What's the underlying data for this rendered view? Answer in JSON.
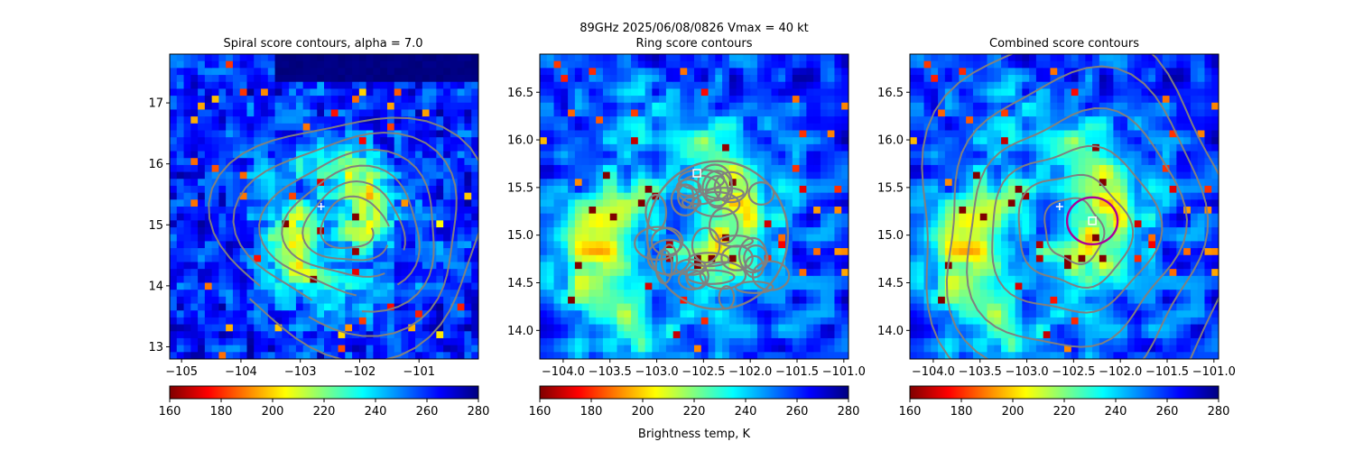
{
  "figure": {
    "suptitle": "89GHz  2025/06/08/0826    Vmax = 40 kt",
    "colorbar_label": "Brightness temp, K",
    "colormap_stops": [
      "#800000",
      "#ff0000",
      "#ff8000",
      "#ffff00",
      "#80ff80",
      "#00ffff",
      "#0080ff",
      "#0000ff",
      "#000080"
    ]
  },
  "chart_data": [
    {
      "type": "heatmap",
      "title": "Spiral score contours, alpha =  7.0",
      "xlim": [
        -105.2,
        -100.0
      ],
      "ylim": [
        12.8,
        17.8
      ],
      "x_ticks": [
        -105,
        -104,
        -103,
        -102,
        -101
      ],
      "y_ticks": [
        13,
        14,
        15,
        16,
        17
      ],
      "x_tick_labels": [
        "−105",
        "−104",
        "−103",
        "−102",
        "−101"
      ],
      "y_tick_labels": [
        "13",
        "14",
        "15",
        "16",
        "17"
      ],
      "colorbar": {
        "min": 160,
        "max": 280,
        "ticks": [
          160,
          180,
          200,
          220,
          240,
          260,
          280
        ],
        "tick_labels": [
          "160",
          "180",
          "200",
          "220",
          "240",
          "260",
          "280"
        ]
      },
      "markers": [
        {
          "type": "plus",
          "x": -102.65,
          "y": 15.3,
          "color": "#ffffff"
        }
      ],
      "contour_color": "#808080"
    },
    {
      "type": "heatmap",
      "title": "Ring score contours",
      "xlim": [
        -104.25,
        -100.95
      ],
      "ylim": [
        13.7,
        16.9
      ],
      "x_ticks": [
        -104.0,
        -103.5,
        -103.0,
        -102.5,
        -102.0,
        -101.5,
        -101.0
      ],
      "y_ticks": [
        14.0,
        14.5,
        15.0,
        15.5,
        16.0,
        16.5
      ],
      "x_tick_labels": [
        "−104.0",
        "−103.5",
        "−103.0",
        "−102.5",
        "−102.0",
        "−101.5",
        "−101.0"
      ],
      "y_tick_labels": [
        "14.0",
        "14.5",
        "15.0",
        "15.5",
        "16.0",
        "16.5"
      ],
      "colorbar": {
        "min": 160,
        "max": 280,
        "ticks": [
          160,
          180,
          200,
          220,
          240,
          260,
          280
        ],
        "tick_labels": [
          "160",
          "180",
          "200",
          "220",
          "240",
          "260",
          "280"
        ]
      },
      "markers": [
        {
          "type": "square",
          "x": -102.57,
          "y": 15.65,
          "color": "#ffffff"
        }
      ],
      "contour_color": "#808080"
    },
    {
      "type": "heatmap",
      "title": "Combined score contours",
      "xlim": [
        -104.25,
        -100.95
      ],
      "ylim": [
        13.7,
        16.9
      ],
      "x_ticks": [
        -104.0,
        -103.5,
        -103.0,
        -102.5,
        -102.0,
        -101.5,
        -101.0
      ],
      "y_ticks": [
        14.0,
        14.5,
        15.0,
        15.5,
        16.0,
        16.5
      ],
      "x_tick_labels": [
        "−104.0",
        "−103.5",
        "−103.0",
        "−102.5",
        "−102.0",
        "−101.5",
        "−101.0"
      ],
      "y_tick_labels": [
        "14.0",
        "14.5",
        "15.0",
        "15.5",
        "16.0",
        "16.5"
      ],
      "colorbar": {
        "min": 160,
        "max": 280,
        "ticks": [
          160,
          180,
          200,
          220,
          240,
          260,
          280
        ],
        "tick_labels": [
          "160",
          "180",
          "200",
          "220",
          "240",
          "260",
          "280"
        ]
      },
      "markers": [
        {
          "type": "plus",
          "x": -102.65,
          "y": 15.3,
          "color": "#ffffff"
        },
        {
          "type": "square",
          "x": -102.3,
          "y": 15.15,
          "color": "#ffffff"
        }
      ],
      "contour_color": "#808080",
      "highlight_ring": {
        "x": -102.3,
        "y": 15.15,
        "color": "#aa0099"
      }
    }
  ]
}
